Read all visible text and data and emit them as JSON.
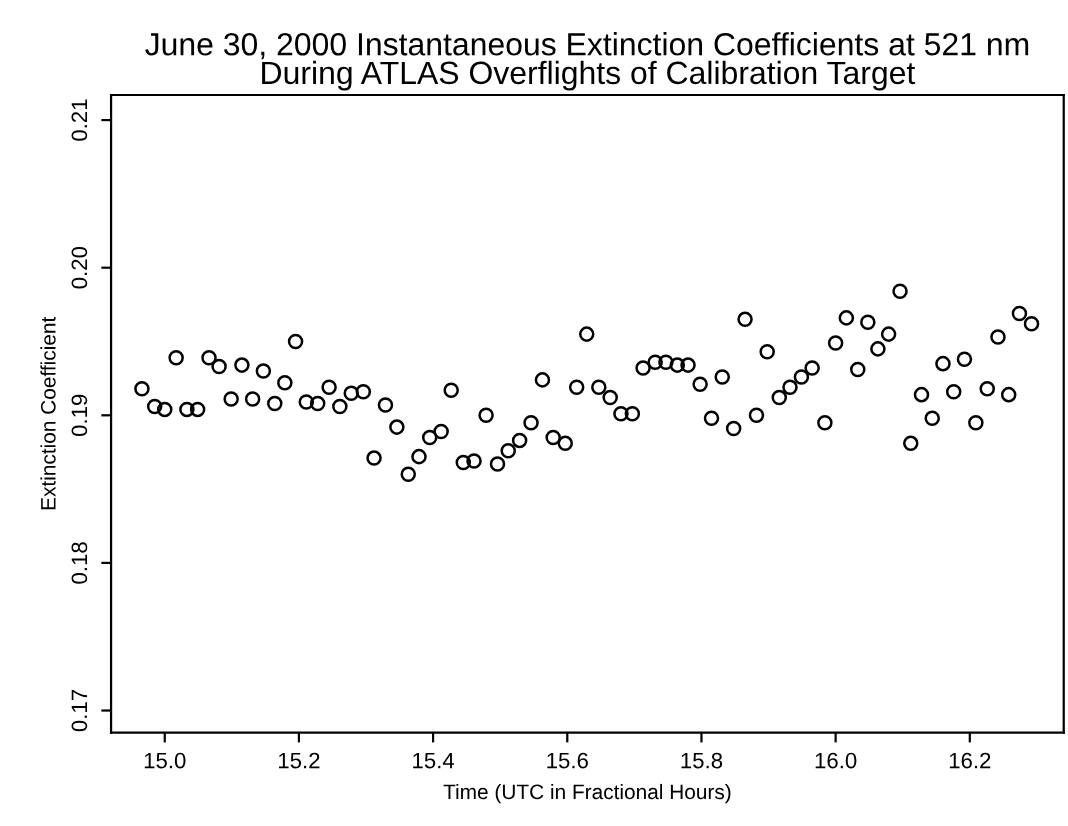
{
  "chart_data": {
    "type": "scatter",
    "title": "June 30, 2000 Instantaneous Extinction Coefficients at 521 nm\nDuring ATLAS Overflights of Calibration Target",
    "xlabel": "Time (UTC in Fractional Hours)",
    "ylabel": "Extinction Coefficient",
    "x": [
      14.966,
      14.985,
      15.0,
      15.017,
      15.033,
      15.049,
      15.066,
      15.081,
      15.099,
      15.115,
      15.131,
      15.147,
      15.164,
      15.179,
      15.195,
      15.211,
      15.228,
      15.245,
      15.261,
      15.278,
      15.296,
      15.312,
      15.329,
      15.346,
      15.363,
      15.379,
      15.395,
      15.412,
      15.427,
      15.445,
      15.461,
      15.479,
      15.496,
      15.512,
      15.529,
      15.546,
      15.563,
      15.579,
      15.597,
      15.614,
      15.629,
      15.647,
      15.664,
      15.68,
      15.697,
      15.713,
      15.731,
      15.747,
      15.764,
      15.78,
      15.798,
      15.815,
      15.831,
      15.848,
      15.865,
      15.882,
      15.898,
      15.916,
      15.932,
      15.949,
      15.965,
      15.984,
      16.0,
      16.016,
      16.033,
      16.048,
      16.063,
      16.079,
      16.096,
      16.112,
      16.128,
      16.144,
      16.16,
      16.176,
      16.192,
      16.209,
      16.226,
      16.242,
      16.258,
      16.274,
      16.292
    ],
    "series": [
      {
        "color": "#000000",
        "values": [
          0.1918,
          0.1906,
          0.1904,
          0.1939,
          0.1904,
          0.1904,
          0.1939,
          0.1933,
          0.1911,
          0.1934,
          0.1911,
          0.193,
          0.1908,
          0.1922,
          0.195,
          0.1909,
          0.1908,
          0.1919,
          0.1906,
          0.1915,
          0.1916,
          0.1871,
          0.1907,
          0.1892,
          0.186,
          0.1872,
          0.1885,
          0.1889,
          0.1917,
          0.1868,
          0.1869,
          0.19,
          0.1867,
          0.1876,
          0.1883,
          0.1895,
          0.1924,
          0.1885,
          0.1881,
          0.1919,
          0.1955,
          0.1919,
          0.1912,
          0.1901,
          0.1901,
          0.1932,
          0.1936,
          0.1936,
          0.1934,
          0.1934,
          0.1921,
          0.1898,
          0.1926,
          0.1891,
          0.1965,
          0.19,
          0.1943,
          0.1912,
          0.1919,
          0.1926,
          0.1932,
          0.1895,
          0.1949,
          0.1966,
          0.1931,
          0.1963,
          0.1945,
          0.1955,
          0.1984,
          0.1881,
          0.1914,
          0.1898,
          0.1935,
          0.1916,
          0.1938,
          0.1895,
          0.1918,
          0.1953,
          0.1914,
          0.1969,
          0.1962
        ]
      }
    ],
    "marker": "circle",
    "xlim": [
      14.92,
      16.34
    ],
    "xticks": [
      {
        "value": 15.0,
        "label": "15.0"
      },
      {
        "value": 15.2,
        "label": "15.2"
      },
      {
        "value": 15.4,
        "label": "15.4"
      },
      {
        "value": 15.6,
        "label": "15.6"
      },
      {
        "value": 15.8,
        "label": "15.8"
      },
      {
        "value": 16.0,
        "label": "16.0"
      },
      {
        "value": 16.2,
        "label": "16.2"
      }
    ],
    "ylim": [
      0.1685,
      0.2117
    ],
    "yticks": [
      {
        "value": 0.17,
        "label": "0.17"
      },
      {
        "value": 0.18,
        "label": "0.18"
      },
      {
        "value": 0.19,
        "label": "0.19"
      },
      {
        "value": 0.2,
        "label": "0.20"
      },
      {
        "value": 0.21,
        "label": "0.21"
      }
    ],
    "grid": false,
    "legend": false
  }
}
